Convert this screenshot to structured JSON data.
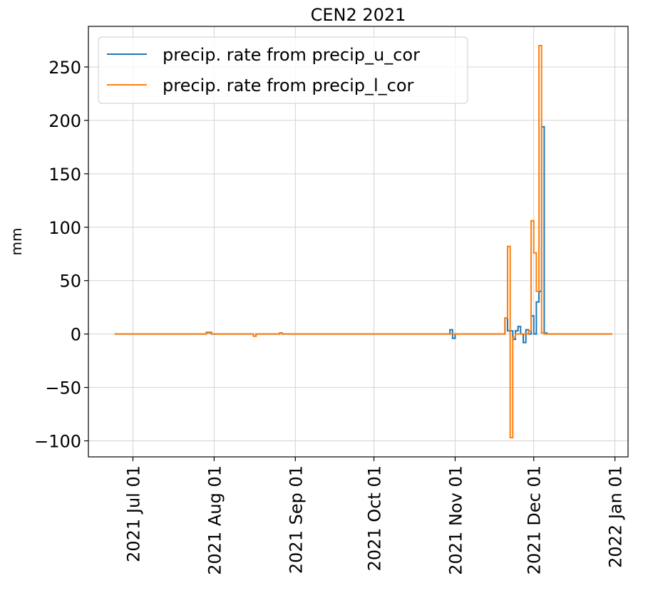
{
  "chart_data": {
    "type": "line",
    "title": "CEN2 2021",
    "ylabel": "mm",
    "xlabel": "",
    "xlim": [
      "2021-06-14",
      "2022-01-06"
    ],
    "ylim": [
      -115,
      288
    ],
    "grid": true,
    "legend_position": "upper-left",
    "x_ticks": [
      {
        "date": "2021-07-01",
        "label": "2021 Jul 01"
      },
      {
        "date": "2021-08-01",
        "label": "2021 Aug 01"
      },
      {
        "date": "2021-09-01",
        "label": "2021 Sep 01"
      },
      {
        "date": "2021-10-01",
        "label": "2021 Oct 01"
      },
      {
        "date": "2021-11-01",
        "label": "2021 Nov 01"
      },
      {
        "date": "2021-12-01",
        "label": "2021 Dec 01"
      },
      {
        "date": "2022-01-01",
        "label": "2022 Jan 01"
      }
    ],
    "y_ticks": [
      {
        "value": 250,
        "label": "250"
      },
      {
        "value": 200,
        "label": "200"
      },
      {
        "value": 150,
        "label": "150"
      },
      {
        "value": 100,
        "label": "100"
      },
      {
        "value": 50,
        "label": "50"
      },
      {
        "value": 0,
        "label": "0"
      },
      {
        "value": -50,
        "label": "−50"
      },
      {
        "value": -100,
        "label": "−100"
      }
    ],
    "series": [
      {
        "name": "precip. rate from precip_u_cor",
        "color": "#1f77b4",
        "step": "post",
        "points": [
          [
            "2021-06-24",
            0
          ],
          [
            "2021-07-29",
            1.5
          ],
          [
            "2021-07-31",
            0
          ],
          [
            "2021-08-16",
            -2
          ],
          [
            "2021-08-17",
            0
          ],
          [
            "2021-08-26",
            1
          ],
          [
            "2021-08-27",
            0
          ],
          [
            "2021-10-30",
            4
          ],
          [
            "2021-10-31",
            -4
          ],
          [
            "2021-11-01",
            0
          ],
          [
            "2021-11-20",
            15
          ],
          [
            "2021-11-21",
            3
          ],
          [
            "2021-11-23",
            -5
          ],
          [
            "2021-11-24",
            3
          ],
          [
            "2021-11-25",
            7
          ],
          [
            "2021-11-26",
            0
          ],
          [
            "2021-11-27",
            -8
          ],
          [
            "2021-11-28",
            4
          ],
          [
            "2021-11-29",
            0
          ],
          [
            "2021-11-30",
            17
          ],
          [
            "2021-12-01",
            0
          ],
          [
            "2021-12-02",
            30
          ],
          [
            "2021-12-03",
            40
          ],
          [
            "2021-12-04",
            194
          ],
          [
            "2021-12-05",
            1
          ],
          [
            "2021-12-06",
            0
          ],
          [
            "2021-12-31",
            0
          ]
        ]
      },
      {
        "name": "precip. rate from precip_l_cor",
        "color": "#ff7f0e",
        "step": "post",
        "points": [
          [
            "2021-06-24",
            0
          ],
          [
            "2021-07-29",
            1
          ],
          [
            "2021-07-31",
            0
          ],
          [
            "2021-08-16",
            -2
          ],
          [
            "2021-08-17",
            0
          ],
          [
            "2021-08-26",
            1
          ],
          [
            "2021-08-27",
            0
          ],
          [
            "2021-11-20",
            15
          ],
          [
            "2021-11-21",
            82
          ],
          [
            "2021-11-22",
            -97
          ],
          [
            "2021-11-23",
            -3
          ],
          [
            "2021-11-24",
            0
          ],
          [
            "2021-11-29",
            3
          ],
          [
            "2021-11-30",
            106
          ],
          [
            "2021-12-01",
            76
          ],
          [
            "2021-12-02",
            40
          ],
          [
            "2021-12-03",
            270
          ],
          [
            "2021-12-04",
            1
          ],
          [
            "2021-12-05",
            0
          ],
          [
            "2021-12-31",
            0
          ]
        ]
      }
    ]
  }
}
